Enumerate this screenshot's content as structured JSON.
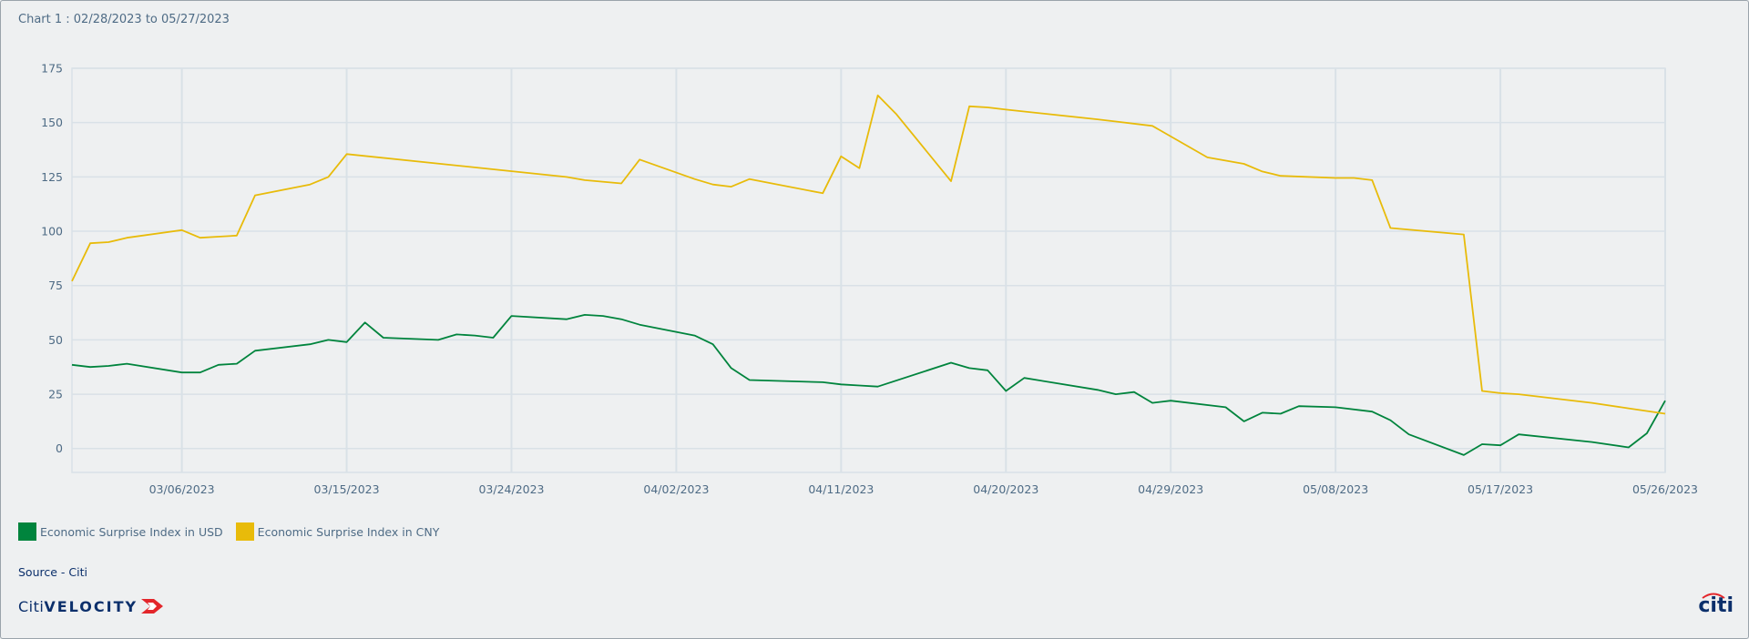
{
  "title": "Chart 1 : 02/28/2023 to 05/27/2023",
  "source": "Source - Citi",
  "logo": {
    "citi": "Citi",
    "velocity": "VELOCITY",
    "mark": "citi"
  },
  "colors": {
    "usd": "#00843d",
    "cny": "#e8bb0a",
    "grid": "#d9e1e7",
    "axis_text": "#4e6b85"
  },
  "chart_data": {
    "type": "line",
    "x_tick_labels": [
      "03/06/2023",
      "03/15/2023",
      "03/24/2023",
      "04/02/2023",
      "04/11/2023",
      "04/20/2023",
      "04/29/2023",
      "05/08/2023",
      "05/17/2023",
      "05/26/2023"
    ],
    "y_ticks": [
      0,
      25,
      50,
      75,
      100,
      125,
      150,
      175
    ],
    "ylim": [
      -11,
      175
    ],
    "xlim": [
      "2023-02-28",
      "2023-05-26"
    ],
    "grid": true,
    "legend_position": "bottom-left",
    "series": [
      {
        "name": "Economic Surprise Index in USD",
        "color": "#00843d",
        "points": [
          [
            "2023-02-28",
            38.5
          ],
          [
            "2023-03-01",
            37.5
          ],
          [
            "2023-03-02",
            38
          ],
          [
            "2023-03-03",
            39
          ],
          [
            "2023-03-06",
            35
          ],
          [
            "2023-03-07",
            35
          ],
          [
            "2023-03-08",
            38.5
          ],
          [
            "2023-03-09",
            39
          ],
          [
            "2023-03-10",
            45
          ],
          [
            "2023-03-13",
            48
          ],
          [
            "2023-03-14",
            50
          ],
          [
            "2023-03-15",
            49
          ],
          [
            "2023-03-16",
            58
          ],
          [
            "2023-03-17",
            51
          ],
          [
            "2023-03-20",
            50
          ],
          [
            "2023-03-21",
            52.5
          ],
          [
            "2023-03-22",
            52
          ],
          [
            "2023-03-23",
            51
          ],
          [
            "2023-03-24",
            61
          ],
          [
            "2023-03-27",
            59.5
          ],
          [
            "2023-03-28",
            61.5
          ],
          [
            "2023-03-29",
            61
          ],
          [
            "2023-03-30",
            59.5
          ],
          [
            "2023-03-31",
            57
          ],
          [
            "2023-04-03",
            52
          ],
          [
            "2023-04-04",
            48
          ],
          [
            "2023-04-05",
            37
          ],
          [
            "2023-04-06",
            31.5
          ],
          [
            "2023-04-10",
            30.5
          ],
          [
            "2023-04-11",
            29.5
          ],
          [
            "2023-04-12",
            29
          ],
          [
            "2023-04-13",
            28.5
          ],
          [
            "2023-04-17",
            39.5
          ],
          [
            "2023-04-18",
            37
          ],
          [
            "2023-04-19",
            36
          ],
          [
            "2023-04-20",
            26.5
          ],
          [
            "2023-04-21",
            32.5
          ],
          [
            "2023-04-25",
            27
          ],
          [
            "2023-04-26",
            25
          ],
          [
            "2023-04-27",
            26
          ],
          [
            "2023-04-28",
            21
          ],
          [
            "2023-04-29",
            22
          ],
          [
            "2023-05-02",
            19
          ],
          [
            "2023-05-03",
            12.5
          ],
          [
            "2023-05-04",
            16.5
          ],
          [
            "2023-05-05",
            16
          ],
          [
            "2023-05-06",
            19.5
          ],
          [
            "2023-05-08",
            19
          ],
          [
            "2023-05-10",
            17
          ],
          [
            "2023-05-11",
            13
          ],
          [
            "2023-05-12",
            6.5
          ],
          [
            "2023-05-15",
            -3
          ],
          [
            "2023-05-16",
            2
          ],
          [
            "2023-05-17",
            1.5
          ],
          [
            "2023-05-18",
            6.5
          ],
          [
            "2023-05-22",
            3
          ],
          [
            "2023-05-24",
            0.5
          ],
          [
            "2023-05-25",
            7
          ],
          [
            "2023-05-26",
            22
          ]
        ]
      },
      {
        "name": "Economic Surprise Index in CNY",
        "color": "#e8bb0a",
        "points": [
          [
            "2023-02-28",
            77
          ],
          [
            "2023-03-01",
            94.5
          ],
          [
            "2023-03-02",
            95
          ],
          [
            "2023-03-03",
            97
          ],
          [
            "2023-03-06",
            100.5
          ],
          [
            "2023-03-07",
            97
          ],
          [
            "2023-03-08",
            97.5
          ],
          [
            "2023-03-09",
            98
          ],
          [
            "2023-03-10",
            116.5
          ],
          [
            "2023-03-13",
            121.5
          ],
          [
            "2023-03-14",
            125
          ],
          [
            "2023-03-15",
            135.5
          ],
          [
            "2023-03-23",
            128.5
          ],
          [
            "2023-03-27",
            125
          ],
          [
            "2023-03-28",
            123.5
          ],
          [
            "2023-03-30",
            122
          ],
          [
            "2023-03-31",
            133
          ],
          [
            "2023-04-03",
            124
          ],
          [
            "2023-04-04",
            121.5
          ],
          [
            "2023-04-05",
            120.5
          ],
          [
            "2023-04-06",
            124
          ],
          [
            "2023-04-10",
            117.5
          ],
          [
            "2023-04-11",
            134.5
          ],
          [
            "2023-04-12",
            129
          ],
          [
            "2023-04-13",
            162.5
          ],
          [
            "2023-04-14",
            154
          ],
          [
            "2023-04-17",
            123
          ],
          [
            "2023-04-18",
            157.5
          ],
          [
            "2023-04-19",
            157
          ],
          [
            "2023-04-20",
            156
          ],
          [
            "2023-04-25",
            151.5
          ],
          [
            "2023-04-26",
            150.5
          ],
          [
            "2023-04-28",
            148.5
          ],
          [
            "2023-05-01",
            134
          ],
          [
            "2023-05-03",
            131
          ],
          [
            "2023-05-04",
            127.5
          ],
          [
            "2023-05-05",
            125.5
          ],
          [
            "2023-05-08",
            124.5
          ],
          [
            "2023-05-09",
            124.5
          ],
          [
            "2023-05-10",
            123.5
          ],
          [
            "2023-05-11",
            101.5
          ],
          [
            "2023-05-15",
            98.5
          ],
          [
            "2023-05-16",
            26.5
          ],
          [
            "2023-05-17",
            25.5
          ],
          [
            "2023-05-18",
            25
          ],
          [
            "2023-05-22",
            21
          ],
          [
            "2023-05-24",
            18.5
          ],
          [
            "2023-05-26",
            16
          ]
        ]
      }
    ]
  }
}
